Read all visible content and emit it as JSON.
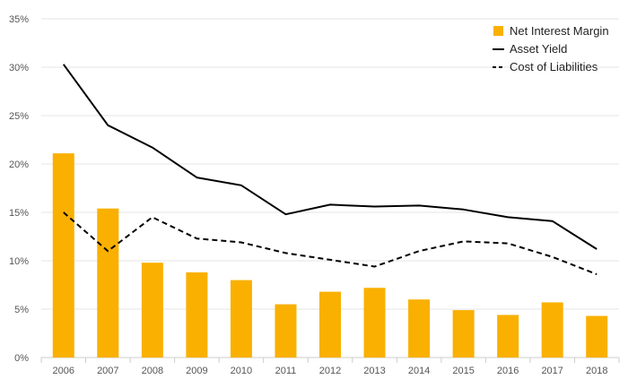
{
  "chart_data": {
    "type": "bar",
    "categories": [
      "2006",
      "2007",
      "2008",
      "2009",
      "2010",
      "2011",
      "2012",
      "2013",
      "2014",
      "2015",
      "2016",
      "2017",
      "2018"
    ],
    "series": [
      {
        "name": "Net Interest Margin",
        "type": "bar",
        "color": "#f9b000",
        "values": [
          21.1,
          15.4,
          9.8,
          8.8,
          8.0,
          5.5,
          6.8,
          7.2,
          6.0,
          4.9,
          4.4,
          5.7,
          4.3
        ]
      },
      {
        "name": "Asset Yield",
        "type": "line",
        "style": "solid",
        "color": "#000000",
        "values": [
          30.3,
          24.0,
          21.7,
          18.6,
          17.8,
          14.8,
          15.8,
          15.6,
          15.7,
          15.3,
          14.5,
          14.1,
          11.2
        ]
      },
      {
        "name": "Cost of Liabilities",
        "type": "line",
        "style": "dashed",
        "color": "#000000",
        "values": [
          15.0,
          11.0,
          14.5,
          12.3,
          11.9,
          10.8,
          10.1,
          9.4,
          11.0,
          12.0,
          11.8,
          10.4,
          8.6
        ]
      }
    ],
    "y_ticks": [
      "0%",
      "5%",
      "10%",
      "15%",
      "20%",
      "25%",
      "30%",
      "35%"
    ],
    "ylim": [
      0,
      35
    ],
    "grid": true,
    "legend_position": "top-right"
  }
}
